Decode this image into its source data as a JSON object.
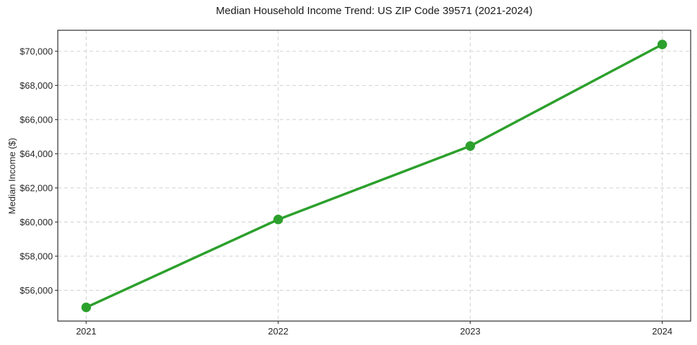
{
  "chart_data": {
    "type": "line",
    "title": "Median Household Income Trend: US ZIP Code 39571 (2021-2024)",
    "xlabel": "",
    "ylabel": "Median Income ($)",
    "categories": [
      "2021",
      "2022",
      "2023",
      "2024"
    ],
    "values": [
      55000,
      60150,
      64450,
      70400
    ],
    "ylim": [
      54200,
      71230
    ],
    "y_ticks": [
      56000,
      58000,
      60000,
      62000,
      64000,
      66000,
      68000,
      70000
    ],
    "y_tick_labels": [
      "$56,000",
      "$58,000",
      "$60,000",
      "$62,000",
      "$64,000",
      "$66,000",
      "$68,000",
      "$70,000"
    ],
    "x_tick_labels": [
      "2021",
      "2022",
      "2023",
      "2024"
    ],
    "grid": "both-dashed",
    "legend": "none",
    "marker": "circle"
  },
  "colors": {
    "line": "#2ca02c",
    "marker": "#2ca02c",
    "grid": "#cfcfcf",
    "axis": "#3c3c3c",
    "text": "#262626",
    "background": "#ffffff"
  }
}
